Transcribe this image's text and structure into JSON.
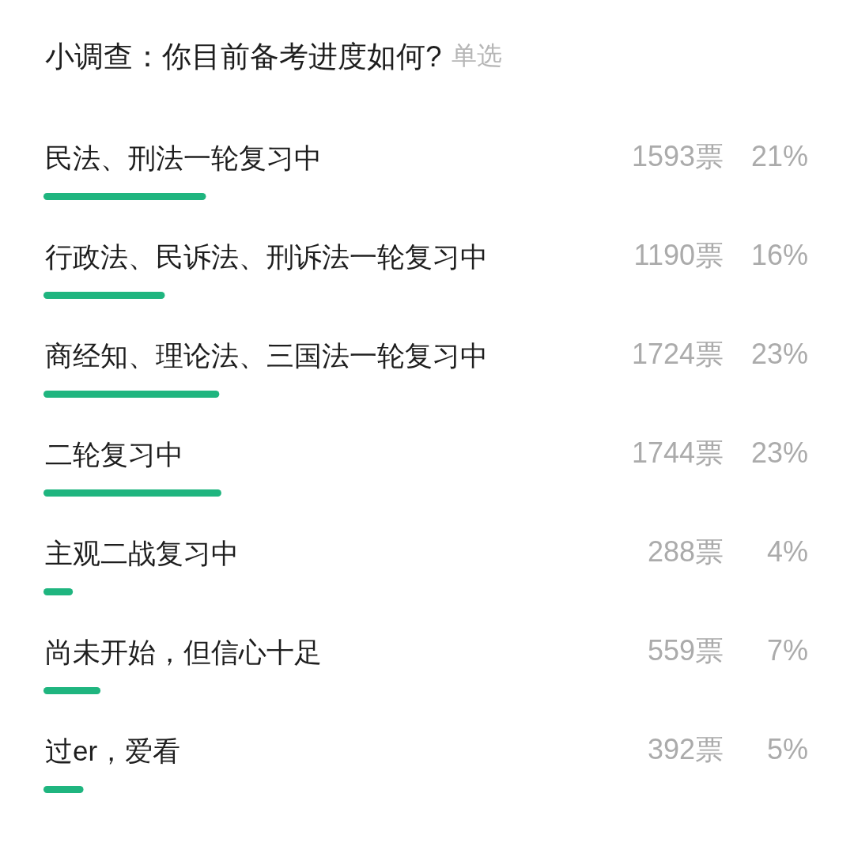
{
  "chart_data": {
    "type": "bar",
    "orientation": "horizontal",
    "title": "小调查：你目前备考进度如何?",
    "subtitle": "单选",
    "categories": [
      "民法、刑法一轮复习中",
      "行政法、民诉法、刑诉法一轮复习中",
      "商经知、理论法、三国法一轮复习中",
      "二轮复习中",
      "主观二战复习中",
      "尚未开始，但信心十足",
      "过er，爱看"
    ],
    "values": [
      1593,
      1190,
      1724,
      1744,
      288,
      559,
      392
    ],
    "color": "#1fb57f",
    "value_labels": [
      "1593票",
      "1190票",
      "1724票",
      "1744票",
      "288票",
      "559票",
      "392票"
    ],
    "annotations": [
      "21%",
      "16%",
      "23%",
      "23%",
      "4%",
      "7%",
      "5%"
    ]
  }
}
